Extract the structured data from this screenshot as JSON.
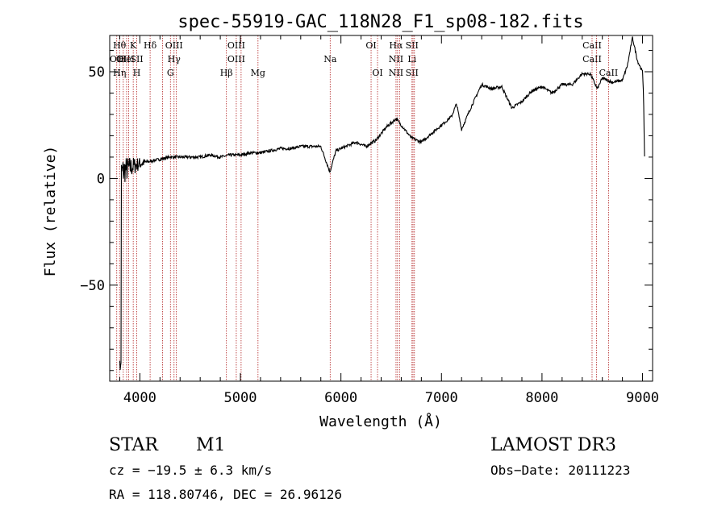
{
  "chart_data": {
    "type": "line",
    "title": "spec-55919-GAC_118N28_F1_sp08-182.fits",
    "xlabel": "Wavelength (Å)",
    "ylabel": "Flux (relative)",
    "xlim": [
      3700,
      9100
    ],
    "ylim": [
      -95,
      67
    ],
    "x_ticks": [
      4000,
      5000,
      6000,
      7000,
      8000,
      9000
    ],
    "y_ticks": [
      -50,
      0,
      50
    ],
    "grid": false,
    "series": [
      {
        "name": "spectrum",
        "color": "#000000",
        "x": [
          3800,
          3850,
          3900,
          3950,
          4000,
          4100,
          4200,
          4300,
          4400,
          4500,
          4600,
          4700,
          4800,
          4900,
          5000,
          5100,
          5200,
          5300,
          5400,
          5500,
          5600,
          5700,
          5800,
          5890,
          5950,
          6050,
          6150,
          6250,
          6350,
          6450,
          6550,
          6600,
          6700,
          6800,
          6900,
          7000,
          7100,
          7150,
          7200,
          7300,
          7400,
          7500,
          7600,
          7700,
          7800,
          7900,
          8000,
          8100,
          8200,
          8300,
          8400,
          8480,
          8550,
          8600,
          8700,
          8800,
          8850,
          8900,
          8950,
          9000,
          9010,
          9020
        ],
        "y": [
          2,
          4,
          5,
          6,
          7,
          8,
          9,
          10,
          10,
          10,
          10,
          11,
          10,
          11,
          11,
          12,
          12,
          13,
          14,
          14,
          15,
          15,
          15,
          3,
          13,
          15,
          17,
          15,
          18,
          24,
          28,
          25,
          19,
          17,
          21,
          25,
          29,
          35,
          23,
          34,
          44,
          42,
          43,
          33,
          36,
          41,
          43,
          40,
          44,
          44,
          49,
          49,
          42,
          47,
          45,
          46,
          53,
          66,
          55,
          50,
          40,
          10
        ]
      }
    ],
    "line_labels": [
      {
        "x": 3770,
        "lines": [
          "",
          "OII",
          ""
        ]
      },
      {
        "x": 3798,
        "lines": [
          "Hθ",
          "",
          "Hη"
        ]
      },
      {
        "x": 3835,
        "lines": [
          "",
          "OII",
          ""
        ]
      },
      {
        "x": 3868,
        "lines": [
          "",
          "HeI",
          ""
        ]
      },
      {
        "x": 3889,
        "lines": [
          "",
          "",
          ""
        ]
      },
      {
        "x": 3934,
        "lines": [
          "K",
          "",
          ""
        ]
      },
      {
        "x": 3969,
        "lines": [
          "",
          "SII",
          "H"
        ]
      },
      {
        "x": 4102,
        "lines": [
          "Hδ",
          "",
          ""
        ]
      },
      {
        "x": 4226,
        "lines": [
          "",
          "",
          ""
        ]
      },
      {
        "x": 4304,
        "lines": [
          "",
          "",
          "G"
        ]
      },
      {
        "x": 4340,
        "lines": [
          "OIII",
          "Hγ",
          ""
        ]
      },
      {
        "x": 4363,
        "lines": [
          "",
          "",
          ""
        ]
      },
      {
        "x": 4861,
        "lines": [
          "",
          "",
          "Hβ"
        ]
      },
      {
        "x": 4959,
        "lines": [
          "OIII",
          "OIII",
          ""
        ]
      },
      {
        "x": 5007,
        "lines": [
          "",
          "",
          ""
        ]
      },
      {
        "x": 5175,
        "lines": [
          "",
          "",
          "Mg"
        ]
      },
      {
        "x": 5893,
        "lines": [
          "",
          "Na",
          ""
        ]
      },
      {
        "x": 6300,
        "lines": [
          "OI",
          "",
          ""
        ]
      },
      {
        "x": 6364,
        "lines": [
          "",
          "",
          "OI"
        ]
      },
      {
        "x": 6548,
        "lines": [
          "Hα",
          "NII",
          "NII"
        ]
      },
      {
        "x": 6563,
        "lines": [
          "",
          "",
          ""
        ]
      },
      {
        "x": 6583,
        "lines": [
          "",
          "",
          ""
        ]
      },
      {
        "x": 6707,
        "lines": [
          "SII",
          "Li",
          "SII"
        ]
      },
      {
        "x": 6717,
        "lines": [
          "",
          "",
          ""
        ]
      },
      {
        "x": 6731,
        "lines": [
          "",
          "",
          ""
        ]
      },
      {
        "x": 8498,
        "lines": [
          "CaII",
          "CaII",
          ""
        ]
      },
      {
        "x": 8542,
        "lines": [
          "",
          "",
          ""
        ]
      },
      {
        "x": 8662,
        "lines": [
          "",
          "",
          "CaII"
        ]
      }
    ]
  },
  "info": {
    "object_class": "STAR",
    "subclass": "M1",
    "survey": "LAMOST DR3",
    "redshift": "cz = −19.5 ± 6.3 km/s",
    "obs_date": "Obs−Date: 20111223",
    "coords": "RA = 118.80746, DEC =  26.96126"
  }
}
